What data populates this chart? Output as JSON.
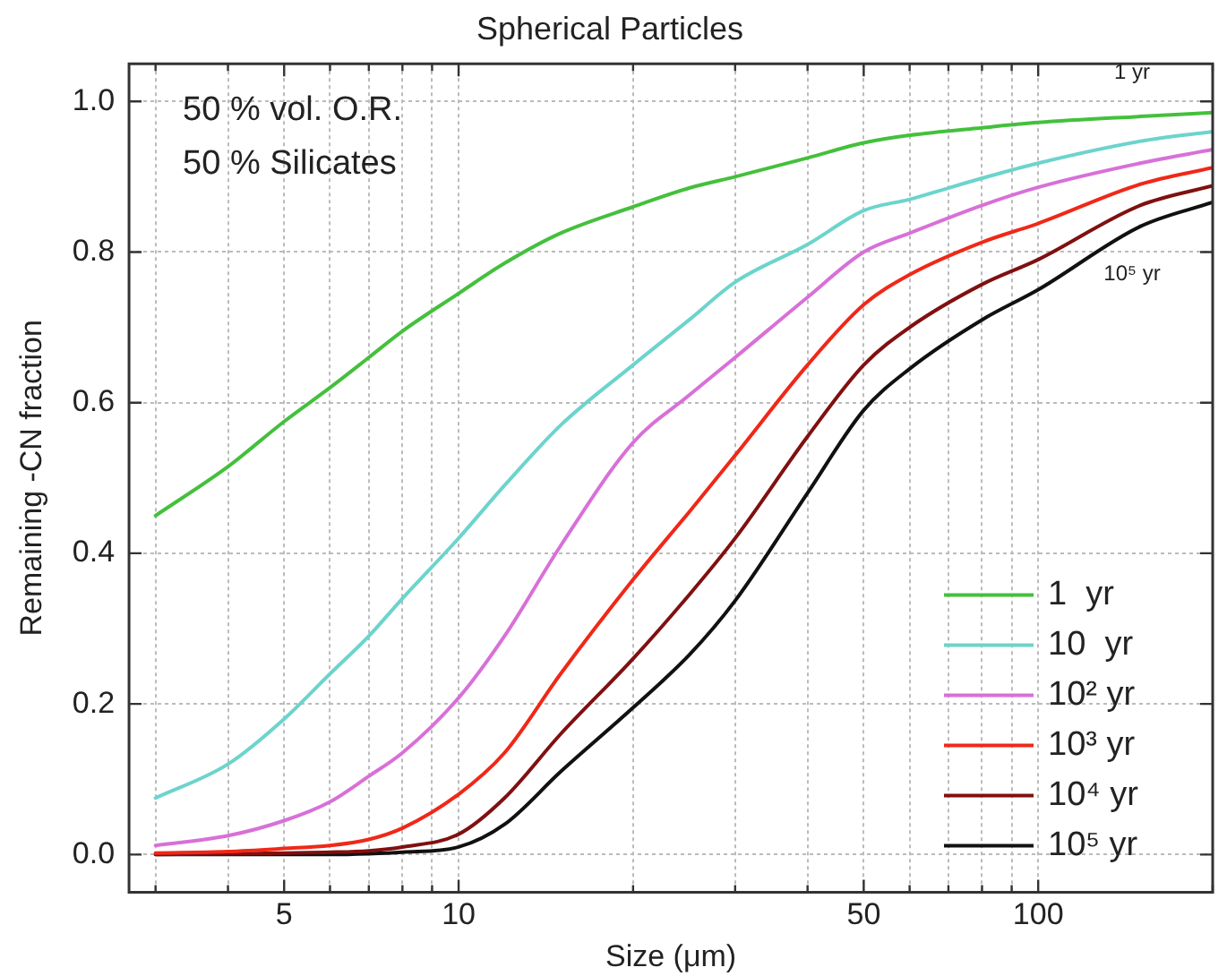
{
  "chart_data": {
    "type": "line",
    "title": "Spherical Particles",
    "xlabel": "Size (μm)",
    "ylabel": "Remaining -CN fraction",
    "log": "x",
    "x": [
      3,
      4,
      5,
      6,
      7,
      8,
      10,
      12,
      15,
      20,
      25,
      30,
      40,
      50,
      60,
      80,
      100,
      150,
      200
    ],
    "series": [
      {
        "name": "1  yr",
        "color": "#44c03c",
        "values": [
          0.45,
          0.515,
          0.575,
          0.62,
          0.66,
          0.695,
          0.745,
          0.785,
          0.825,
          0.86,
          0.885,
          0.9,
          0.925,
          0.945,
          0.955,
          0.965,
          0.972,
          0.98,
          0.985
        ]
      },
      {
        "name": "10  yr",
        "color": "#6cd4cc",
        "values": [
          0.075,
          0.12,
          0.18,
          0.24,
          0.29,
          0.34,
          0.42,
          0.49,
          0.57,
          0.65,
          0.71,
          0.76,
          0.81,
          0.855,
          0.87,
          0.898,
          0.918,
          0.947,
          0.96
        ]
      },
      {
        "name": "10² yr",
        "color": "#d870d8",
        "values": [
          0.012,
          0.025,
          0.045,
          0.07,
          0.104,
          0.135,
          0.208,
          0.29,
          0.41,
          0.547,
          0.61,
          0.66,
          0.74,
          0.8,
          0.825,
          0.862,
          0.886,
          0.918,
          0.936
        ]
      },
      {
        "name": "10³ yr",
        "color": "#f02818",
        "values": [
          0.002,
          0.004,
          0.008,
          0.012,
          0.02,
          0.035,
          0.08,
          0.135,
          0.24,
          0.365,
          0.455,
          0.53,
          0.65,
          0.73,
          0.77,
          0.813,
          0.838,
          0.89,
          0.912
        ]
      },
      {
        "name": "10⁴ yr",
        "color": "#801010",
        "values": [
          0,
          0.001,
          0.002,
          0.003,
          0.005,
          0.01,
          0.027,
          0.075,
          0.16,
          0.26,
          0.345,
          0.42,
          0.555,
          0.65,
          0.7,
          0.757,
          0.79,
          0.862,
          0.888
        ]
      },
      {
        "name": "10⁵ yr",
        "color": "#111111",
        "values": [
          0,
          0,
          0,
          0,
          0.001,
          0.003,
          0.01,
          0.04,
          0.11,
          0.195,
          0.265,
          0.337,
          0.48,
          0.59,
          0.645,
          0.71,
          0.75,
          0.834,
          0.866
        ]
      }
    ],
    "xlim": [
      2.7,
      200
    ],
    "xticks": [
      {
        "value": 3,
        "label": null
      },
      {
        "value": 4,
        "label": null
      },
      5,
      {
        "value": 6,
        "label": null
      },
      {
        "value": 7,
        "label": null
      },
      {
        "value": 8,
        "label": null
      },
      {
        "value": 9,
        "label": null
      },
      10,
      {
        "value": 20,
        "label": null
      },
      {
        "value": 30,
        "label": null
      },
      {
        "value": 40,
        "label": null
      },
      50,
      {
        "value": 60,
        "label": null
      },
      {
        "value": 70,
        "label": null
      },
      {
        "value": 80,
        "label": null
      },
      {
        "value": 90,
        "label": null
      },
      100,
      {
        "value": 200,
        "label": null
      }
    ],
    "ylim": [
      -0.05,
      1.05
    ],
    "yticks": [
      {
        "value": 0,
        "label": "0.0"
      },
      {
        "value": 0.2,
        "label": "0.2"
      },
      {
        "value": 0.4,
        "label": "0.4"
      },
      {
        "value": 0.6,
        "label": "0.6"
      },
      {
        "value": 0.8,
        "label": "0.8"
      },
      {
        "value": 1,
        "label": "1.0"
      }
    ],
    "grid": true,
    "legend": "bottom right",
    "marker": "none",
    "line_style": "solid",
    "annotations": [
      "50 % vol. O.R.",
      "50 % Silicates",
      "1 yr",
      "10⁵ yr"
    ]
  }
}
